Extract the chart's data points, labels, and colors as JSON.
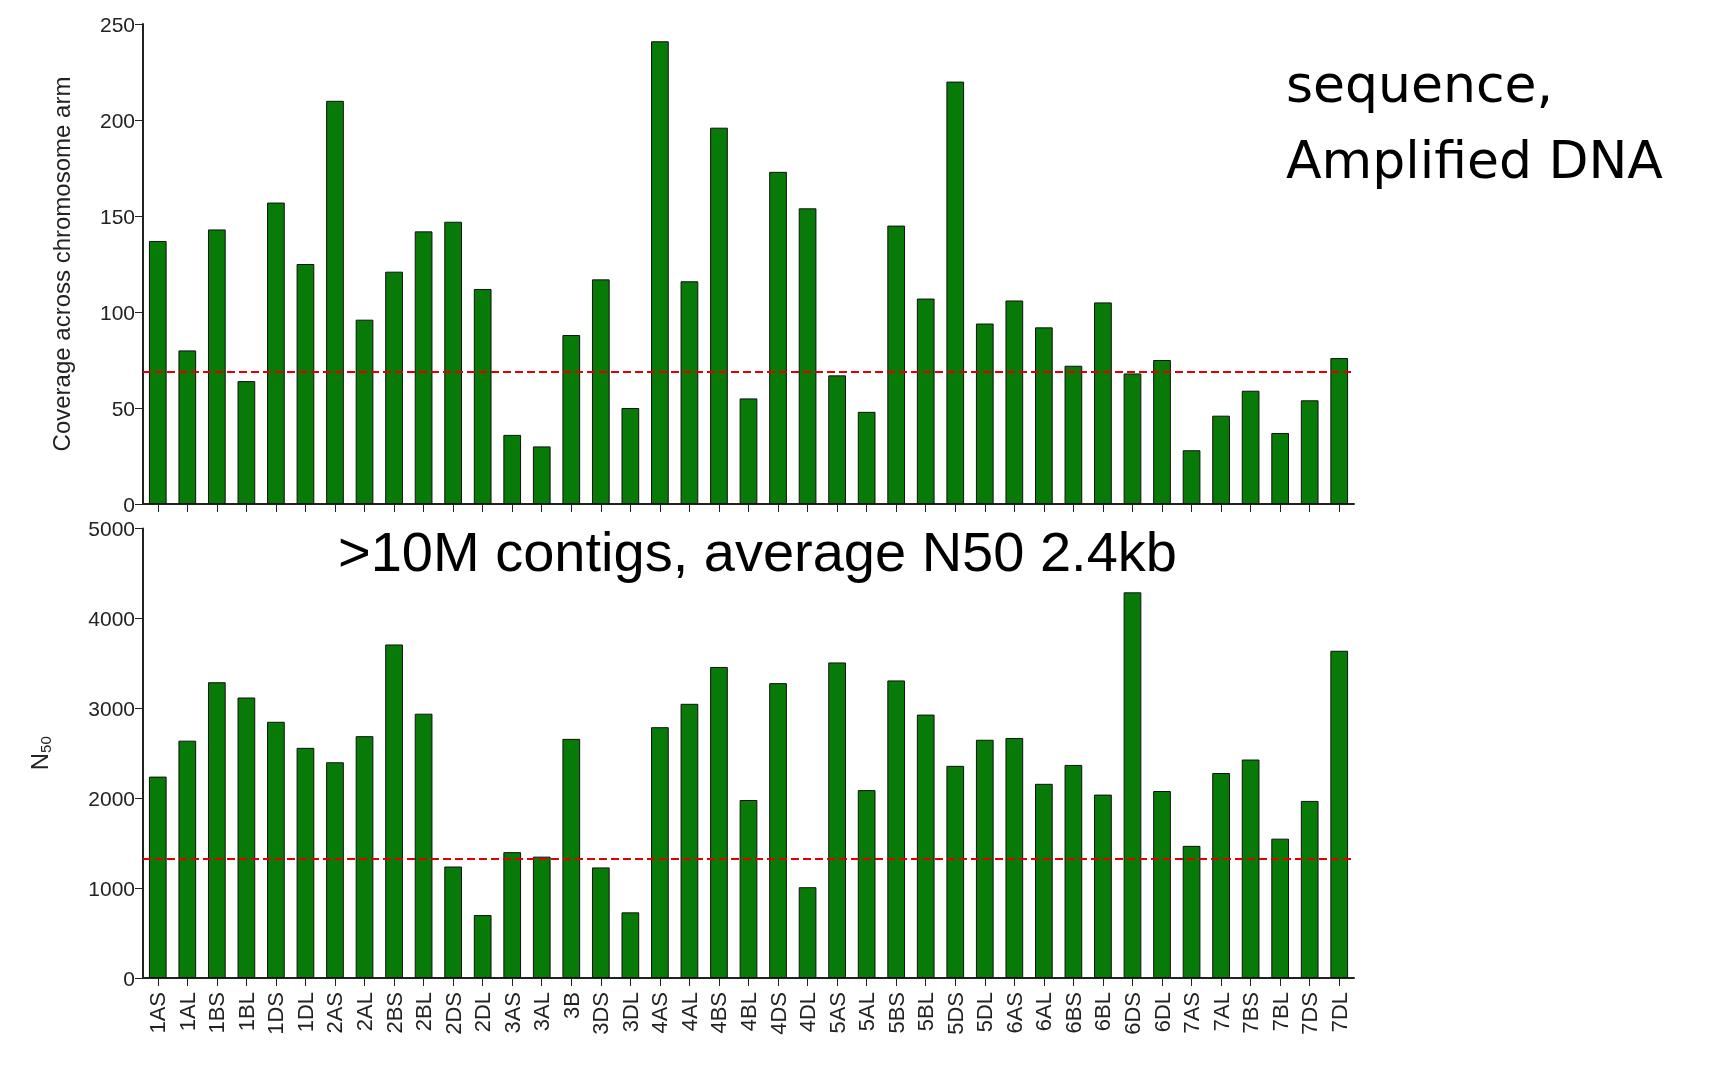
{
  "chart_data": [
    {
      "type": "bar",
      "ylabel": "Coverage across chromosome arm",
      "annotations": [
        "sequence, Amplified DNA"
      ],
      "categories": [
        null,
        null,
        null,
        null,
        null,
        null,
        null,
        null,
        null,
        null,
        null,
        null,
        null,
        null,
        null,
        null,
        null,
        null,
        null,
        null,
        null,
        null,
        null,
        null,
        null,
        null,
        null,
        null,
        null,
        null,
        null,
        null,
        null,
        null,
        null,
        null,
        null,
        null,
        null,
        null,
        null
      ],
      "values": [
        137,
        80,
        143,
        64,
        157,
        125,
        210,
        96,
        121,
        142,
        147,
        112,
        36,
        30,
        88,
        117,
        50,
        241,
        116,
        196,
        55,
        173,
        154,
        67,
        48,
        145,
        107,
        220,
        94,
        106,
        92,
        72,
        105,
        68,
        75,
        28,
        46,
        59,
        37,
        54,
        76
      ],
      "color": "#087a08",
      "ylim": [
        0,
        250
      ],
      "yticks": [
        0,
        50,
        100,
        150,
        200,
        250
      ],
      "grid": false,
      "tick_labels": "y",
      "ref_lines": [
        {
          "axis": "y",
          "value": 69,
          "label": null,
          "color": "#e00000",
          "line_style": "dashed"
        }
      ]
    },
    {
      "type": "bar",
      "ylabel": "N$_{50}$",
      "annotations": [
        ">10M contigs, average N50 2.4kb"
      ],
      "categories": [
        "1AS",
        "1AL",
        "1BS",
        "1BL",
        "1DS",
        "1DL",
        "2AS",
        "2AL",
        "2BS",
        "2BL",
        "2DS",
        "2DL",
        "3AS",
        "3AL",
        "3B",
        "3DS",
        "3DL",
        "4AS",
        "4AL",
        "4BS",
        "4BL",
        "4DS",
        "4DL",
        "5AS",
        "5AL",
        "5BS",
        "5BL",
        "5DS",
        "5DL",
        "6AS",
        "6AL",
        "6BS",
        "6BL",
        "6DS",
        "6DL",
        "7AS",
        "7AL",
        "7BS",
        "7BL",
        "7DS",
        "7DL"
      ],
      "values": [
        2240,
        2640,
        3290,
        3120,
        2850,
        2560,
        2400,
        2690,
        3710,
        2940,
        1240,
        700,
        1400,
        1350,
        2660,
        1230,
        730,
        2790,
        3050,
        3460,
        1980,
        3280,
        1010,
        3510,
        2090,
        3310,
        2930,
        2360,
        2650,
        2670,
        2160,
        2370,
        2040,
        4290,
        2080,
        1470,
        2280,
        2430,
        1550,
        1970,
        3640
      ],
      "color": "#087a08",
      "ylim": [
        0,
        5000
      ],
      "yticks": [
        0,
        1000,
        2000,
        3000,
        4000,
        5000
      ],
      "grid": false,
      "ref_lines": [
        {
          "axis": "y",
          "value": 1330,
          "label": null,
          "color": "#e00000",
          "line_style": "dashed"
        }
      ]
    }
  ]
}
